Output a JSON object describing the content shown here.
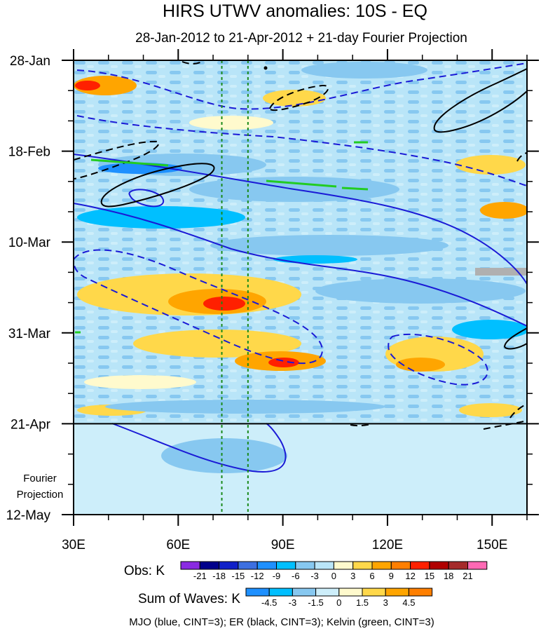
{
  "chart_data": {
    "type": "heatmap",
    "title": "HIRS UTWV anomalies: 10S - EQ",
    "subtitle": "28-Jan-2012 to 21-Apr-2012 + 21-day Fourier Projection",
    "x_axis": {
      "range": [
        30,
        160
      ],
      "ticks": [
        30,
        60,
        90,
        120,
        150
      ],
      "tick_labels": [
        "30E",
        "60E",
        "90E",
        "120E",
        "150E"
      ]
    },
    "y_axis": {
      "range_days": [
        0,
        105
      ],
      "ticks_days": [
        0,
        21,
        42,
        63,
        84,
        105
      ],
      "tick_labels": [
        "28-Jan",
        "18-Feb",
        "10-Mar",
        "31-Mar",
        "21-Apr",
        "12-May"
      ],
      "direction": "time increases downward"
    },
    "observation_end_day": 84,
    "projection_label": [
      "Fourier",
      "Projection"
    ],
    "reference_longitudes": [
      72.5,
      80
    ],
    "obs_colorbar": {
      "label": "Obs: K",
      "levels": [
        "-21",
        "-18",
        "-15",
        "-12",
        "-9",
        "-6",
        "-3",
        "0",
        "3",
        "6",
        "9",
        "12",
        "15",
        "18",
        "21"
      ],
      "colors": [
        "#8a2be2",
        "#00008b",
        "#1020c8",
        "#3d6fe0",
        "#1e90ff",
        "#00bfff",
        "#87c8f0",
        "#b9e5f8",
        "#fffacd",
        "#ffd84a",
        "#ffa500",
        "#ff7f00",
        "#ff2000",
        "#b00000",
        "#a52a2a",
        "#ff69b4"
      ]
    },
    "waves_colorbar": {
      "label": "Sum of Waves: K",
      "levels": [
        "-4.5",
        "-3",
        "-1.5",
        "0",
        "1.5",
        "3",
        "4.5"
      ],
      "colors": [
        "#1e90ff",
        "#00bfff",
        "#87c8f0",
        "#cdeefa",
        "#fffacd",
        "#ffd84a",
        "#ffa500",
        "#ff7f00"
      ]
    },
    "contour_legend": "MJO (blue, CINT=3); ER (black, CINT=3); Kelvin (green, CINT=3)",
    "series": [
      {
        "name": "MJO",
        "color": "#1a1ad6"
      },
      {
        "name": "ER",
        "color": "#000000"
      },
      {
        "name": "Kelvin",
        "color": "#22cc22"
      }
    ],
    "missing_data_color": "#b0b0b0"
  }
}
